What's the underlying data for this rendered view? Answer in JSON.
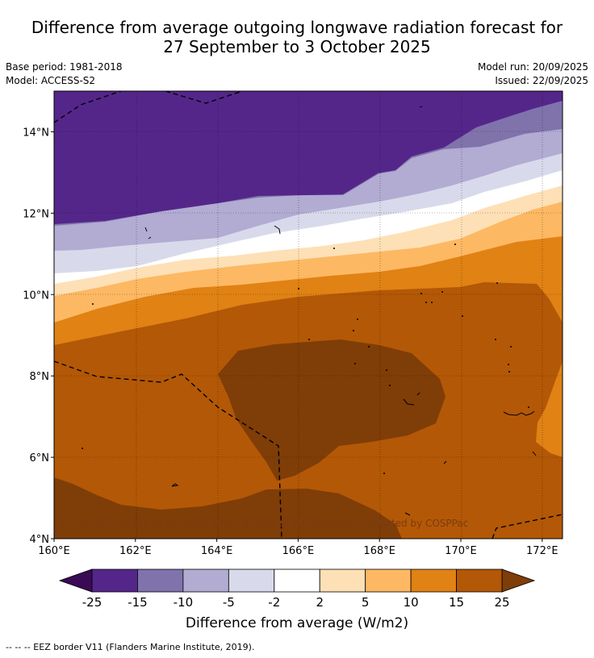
{
  "title": {
    "line1": "Difference from average outgoing longwave radiation forecast for",
    "line2": "27 September to 3 October 2025"
  },
  "meta_left": [
    "Base period: 1981-2018",
    "Model: ACCESS-S2"
  ],
  "meta_right": [
    "Model run: 20/09/2025",
    "Issued: 22/09/2025"
  ],
  "map": {
    "lon_range": [
      160,
      172.5
    ],
    "lat_range": [
      4,
      15
    ],
    "x_ticks": [
      {
        "value": 160,
        "label": "160°E"
      },
      {
        "value": 162,
        "label": "162°E"
      },
      {
        "value": 164,
        "label": "164°E"
      },
      {
        "value": 166,
        "label": "166°E"
      },
      {
        "value": 168,
        "label": "168°E"
      },
      {
        "value": 170,
        "label": "170°E"
      },
      {
        "value": 172,
        "label": "172°E"
      }
    ],
    "y_ticks": [
      {
        "value": 4,
        "label": "4°N"
      },
      {
        "value": 6,
        "label": "6°N"
      },
      {
        "value": 8,
        "label": "8°N"
      },
      {
        "value": 10,
        "label": "10°N"
      },
      {
        "value": 12,
        "label": "12°N"
      },
      {
        "value": 14,
        "label": "14°N"
      }
    ],
    "copyright": "© Commonwealth of Australia 2025, Bureau of Meteorology, supported by COSPPac"
  },
  "colorbar": {
    "low_extend_color": "#3a0a55",
    "high_extend_color": "#7f3d08",
    "bins": [
      {
        "from": -25,
        "to": -15,
        "color": "#54268a"
      },
      {
        "from": -15,
        "to": -10,
        "color": "#8073ac"
      },
      {
        "from": -10,
        "to": -5,
        "color": "#b2abd2"
      },
      {
        "from": -5,
        "to": -2,
        "color": "#d8daeb"
      },
      {
        "from": -2,
        "to": 2,
        "color": "#ffffff"
      },
      {
        "from": 2,
        "to": 5,
        "color": "#fee0b6"
      },
      {
        "from": 5,
        "to": 10,
        "color": "#fdb863"
      },
      {
        "from": 10,
        "to": 15,
        "color": "#e08214"
      },
      {
        "from": 15,
        "to": 25,
        "color": "#b35806"
      }
    ],
    "tick_labels": [
      "-25",
      "-15",
      "-10",
      "-5",
      "-2",
      "2",
      "5",
      "10",
      "15",
      "25"
    ],
    "label": "Difference from average (W/m2)"
  },
  "footnote": "--  --  -- EEZ border V11 (Flanders Marine Institute, 2019)."
}
